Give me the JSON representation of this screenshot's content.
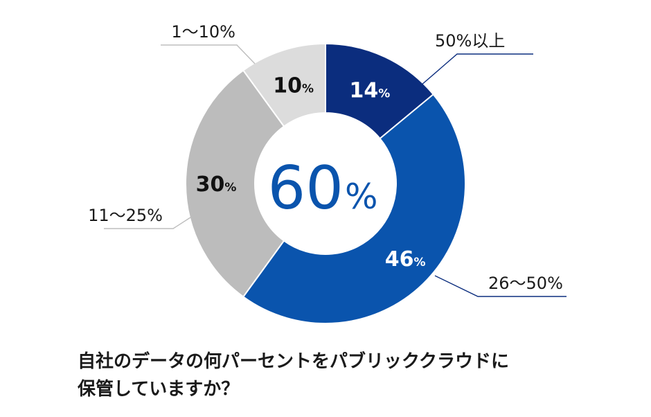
{
  "chart_data": {
    "type": "pie",
    "variant": "donut",
    "start_angle_deg": 0,
    "direction": "clockwise",
    "segments": [
      {
        "category": "50%以上",
        "value": 14,
        "value_text": "14",
        "unit": "%",
        "color": "#0b2d7e",
        "label_color": "#ffffff"
      },
      {
        "category": "26〜50%",
        "value": 46,
        "value_text": "46",
        "unit": "%",
        "color": "#0a54ad",
        "label_color": "#ffffff"
      },
      {
        "category": "11〜25%",
        "value": 30,
        "value_text": "30",
        "unit": "%",
        "color": "#bcbcbc",
        "label_color": "#111111"
      },
      {
        "category": "1〜10%",
        "value": 10,
        "value_text": "10",
        "unit": "%",
        "color": "#dcdcdc",
        "label_color": "#111111"
      }
    ],
    "center_value": "60",
    "center_unit": "%",
    "center_color": "#0a54ad",
    "leader_line_colors": {
      "blue": "#0b2d7e",
      "gray": "#bdbdbd"
    }
  },
  "caption": {
    "line1": "自社のデータの何パーセントをパブリッククラウドに",
    "line2": "保管していますか？"
  }
}
